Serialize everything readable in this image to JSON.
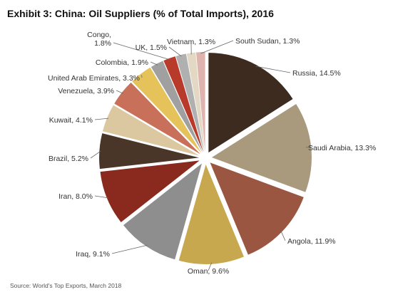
{
  "chart_data": {
    "type": "pie",
    "title": "Exhibit 3: China: Oil Suppliers (% of Total Imports), 2016",
    "source": "Source: World's Top Exports, March 2018",
    "slices": [
      {
        "label": "Russia, 14.5%",
        "name": "Russia",
        "value": 14.5,
        "color": "#3d2b1f"
      },
      {
        "label": "Saudi Arabia, 13.3%",
        "name": "Saudi Arabia",
        "value": 13.3,
        "color": "#a99a7e"
      },
      {
        "label": "Angola, 11.9%",
        "name": "Angola",
        "value": 11.9,
        "color": "#9a5641"
      },
      {
        "label": "Oman, 9.6%",
        "name": "Oman",
        "value": 9.6,
        "color": "#c7a84e"
      },
      {
        "label": "Iraq, 9.1%",
        "name": "Iraq",
        "value": 9.1,
        "color": "#8e8e8e"
      },
      {
        "label": "Iran, 8.0%",
        "name": "Iran",
        "value": 8.0,
        "color": "#8a2a1e"
      },
      {
        "label": "Brazil, 5.2%",
        "name": "Brazil",
        "value": 5.2,
        "color": "#4a3628"
      },
      {
        "label": "Kuwait, 4.1%",
        "name": "Kuwait",
        "value": 4.1,
        "color": "#dcc8a0"
      },
      {
        "label": "Venezuela, 3.9%",
        "name": "Venezuela",
        "value": 3.9,
        "color": "#c9705a"
      },
      {
        "label": "United Arab Emirates, 3.3%",
        "name": "United Arab Emirates",
        "value": 3.3,
        "color": "#e6c25a"
      },
      {
        "label": "Colombia, 1.9%",
        "name": "Colombia",
        "value": 1.9,
        "color": "#a0a0a0"
      },
      {
        "label": [
          "Congo,",
          "1.8%"
        ],
        "name": "Congo",
        "value": 1.8,
        "color": "#b83a2a"
      },
      {
        "label": "UK, 1.5%",
        "name": "UK",
        "value": 1.5,
        "color": "#b0b0b0"
      },
      {
        "label": "Vietnam, 1.3%",
        "name": "Vietnam",
        "value": 1.3,
        "color": "#e2d8c4"
      },
      {
        "label": "South Sudan, 1.3%",
        "name": "South Sudan",
        "value": 1.3,
        "color": "#e0b4ae"
      }
    ]
  }
}
